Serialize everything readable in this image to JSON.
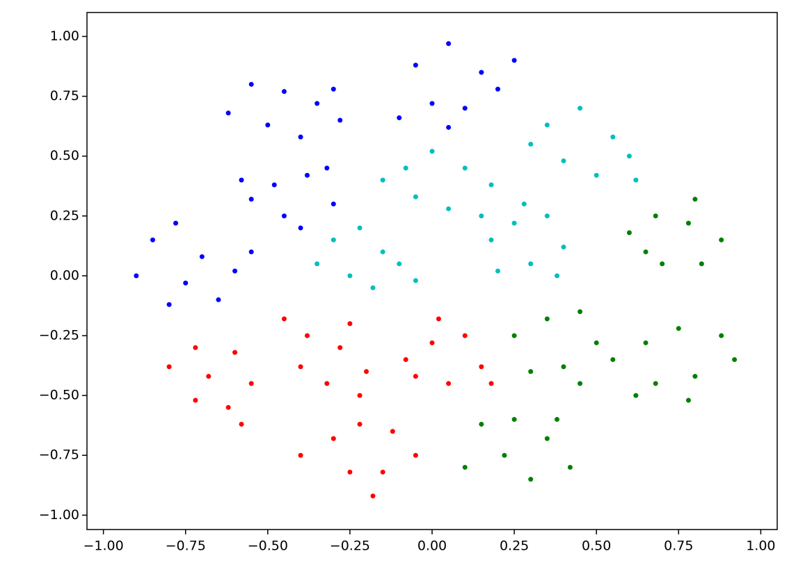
{
  "chart_data": {
    "type": "scatter",
    "xlim": [
      -1.05,
      1.05
    ],
    "ylim": [
      -1.06,
      1.1
    ],
    "xticks": [
      {
        "value": -1,
        "label": "−1.00"
      },
      {
        "value": -0.75,
        "label": "−0.75"
      },
      {
        "value": -0.5,
        "label": "−0.50"
      },
      {
        "value": -0.25,
        "label": "−0.25"
      },
      {
        "value": 0,
        "label": "0.00"
      },
      {
        "value": 0.25,
        "label": "0.25"
      },
      {
        "value": 0.5,
        "label": "0.50"
      },
      {
        "value": 0.75,
        "label": "0.75"
      },
      {
        "value": 1,
        "label": "1.00"
      }
    ],
    "yticks": [
      {
        "value": -1,
        "label": "−1.00"
      },
      {
        "value": -0.75,
        "label": "−0.75"
      },
      {
        "value": -0.5,
        "label": "−0.50"
      },
      {
        "value": -0.25,
        "label": "−0.25"
      },
      {
        "value": 0,
        "label": "0.00"
      },
      {
        "value": 0.25,
        "label": "0.25"
      },
      {
        "value": 0.5,
        "label": "0.50"
      },
      {
        "value": 0.75,
        "label": "0.75"
      },
      {
        "value": 1,
        "label": "1.00"
      }
    ],
    "series": [
      {
        "color": "#0000ff",
        "x": [
          -0.55,
          -0.45,
          -0.35,
          -0.28,
          -0.5,
          -0.4,
          -0.62,
          -0.3,
          -0.58,
          -0.48,
          -0.38,
          -0.3,
          -0.45,
          -0.55,
          -0.32,
          -0.4,
          -0.05,
          0.05,
          0.15,
          0.0,
          0.1,
          0.2,
          0.05,
          -0.1,
          0.25,
          -0.85,
          -0.78,
          -0.7,
          -0.6,
          -0.75,
          -0.9,
          -0.65,
          -0.55,
          -0.8
        ],
        "y": [
          0.8,
          0.77,
          0.72,
          0.65,
          0.63,
          0.58,
          0.68,
          0.78,
          0.4,
          0.38,
          0.42,
          0.3,
          0.25,
          0.32,
          0.45,
          0.2,
          0.88,
          0.97,
          0.85,
          0.72,
          0.7,
          0.78,
          0.62,
          0.66,
          0.9,
          0.15,
          0.22,
          0.08,
          0.02,
          -0.03,
          0.0,
          -0.1,
          0.1,
          -0.12
        ]
      },
      {
        "color": "#00bfbf",
        "x": [
          0.35,
          0.45,
          0.55,
          0.6,
          0.4,
          0.3,
          0.5,
          0.62,
          -0.08,
          0.0,
          0.1,
          0.18,
          -0.05,
          0.05,
          0.15,
          -0.15,
          -0.3,
          -0.22,
          -0.15,
          -0.1,
          -0.25,
          -0.18,
          -0.35,
          -0.05,
          0.18,
          0.25,
          0.35,
          0.4,
          0.3,
          0.2,
          0.38,
          0.28
        ],
        "y": [
          0.63,
          0.7,
          0.58,
          0.5,
          0.48,
          0.55,
          0.42,
          0.4,
          0.45,
          0.52,
          0.45,
          0.38,
          0.33,
          0.28,
          0.25,
          0.4,
          0.15,
          0.2,
          0.1,
          0.05,
          0.0,
          -0.05,
          0.05,
          -0.02,
          0.15,
          0.22,
          0.25,
          0.12,
          0.05,
          0.02,
          0.0,
          0.3
        ]
      },
      {
        "color": "#008000",
        "x": [
          0.6,
          0.68,
          0.78,
          0.88,
          0.82,
          0.7,
          0.65,
          0.8,
          0.25,
          0.35,
          0.45,
          0.5,
          0.4,
          0.3,
          0.55,
          0.45,
          0.65,
          0.75,
          0.88,
          0.92,
          0.8,
          0.68,
          0.62,
          0.78,
          0.15,
          0.25,
          0.35,
          0.42,
          0.3,
          0.22,
          0.1,
          0.38
        ],
        "y": [
          0.18,
          0.25,
          0.22,
          0.15,
          0.05,
          0.05,
          0.1,
          0.32,
          -0.25,
          -0.18,
          -0.15,
          -0.28,
          -0.38,
          -0.4,
          -0.35,
          -0.45,
          -0.28,
          -0.22,
          -0.25,
          -0.35,
          -0.42,
          -0.45,
          -0.5,
          -0.52,
          -0.62,
          -0.6,
          -0.68,
          -0.8,
          -0.85,
          -0.75,
          -0.8,
          -0.6
        ]
      },
      {
        "color": "#ff0000",
        "x": [
          -0.8,
          -0.72,
          -0.6,
          -0.55,
          -0.62,
          -0.72,
          -0.68,
          -0.58,
          -0.45,
          -0.38,
          -0.28,
          -0.2,
          -0.32,
          -0.4,
          -0.25,
          -0.22,
          -0.08,
          0.0,
          0.1,
          0.15,
          0.05,
          -0.05,
          0.02,
          0.18,
          -0.4,
          -0.3,
          -0.22,
          -0.12,
          -0.05,
          -0.15,
          -0.25,
          -0.18
        ],
        "y": [
          -0.38,
          -0.3,
          -0.32,
          -0.45,
          -0.55,
          -0.52,
          -0.42,
          -0.62,
          -0.18,
          -0.25,
          -0.3,
          -0.4,
          -0.45,
          -0.38,
          -0.2,
          -0.5,
          -0.35,
          -0.28,
          -0.25,
          -0.38,
          -0.45,
          -0.42,
          -0.18,
          -0.45,
          -0.75,
          -0.68,
          -0.62,
          -0.65,
          -0.75,
          -0.82,
          -0.82,
          -0.92
        ]
      }
    ]
  }
}
